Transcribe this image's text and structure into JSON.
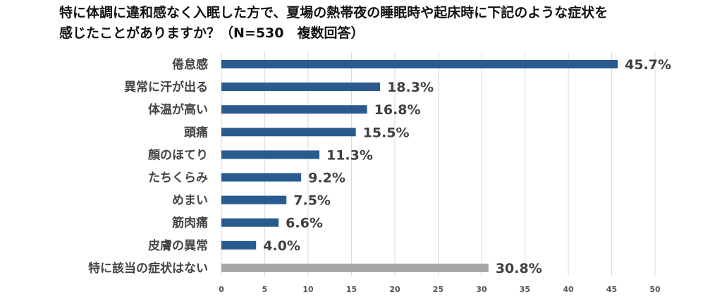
{
  "chart_data": {
    "type": "bar",
    "orientation": "horizontal",
    "title_lines": [
      "特に体調に違和感なく入眠した方で、夏場の熱帯夜の睡眠時や起床時に下記のような症状を",
      "感じたことがありますか？（N=530　複数回答）"
    ],
    "categories": [
      "倦怠感",
      "異常に汗が出る",
      "体温が高い",
      "頭痛",
      "顔のほてり",
      "たちくらみ",
      "めまい",
      "筋肉痛",
      "皮膚の異常",
      "特に該当の症状はない"
    ],
    "values": [
      45.7,
      18.3,
      16.8,
      15.5,
      11.3,
      9.2,
      7.5,
      6.6,
      4.0,
      30.8
    ],
    "value_labels": [
      "45.7%",
      "18.3%",
      "16.8%",
      "15.5%",
      "11.3%",
      "9.2%",
      "7.5%",
      "6.6%",
      "4.0%",
      "30.8%"
    ],
    "bar_colors": [
      "#2a5b8e",
      "#2a5b8e",
      "#2a5b8e",
      "#2a5b8e",
      "#2a5b8e",
      "#2a5b8e",
      "#2a5b8e",
      "#2a5b8e",
      "#2a5b8e",
      "#a6a6a6"
    ],
    "xlim": [
      0,
      50
    ],
    "x_ticks": [
      0,
      5,
      10,
      15,
      20,
      25,
      30,
      35,
      40,
      45,
      50
    ],
    "grid": true,
    "legend": "none"
  }
}
